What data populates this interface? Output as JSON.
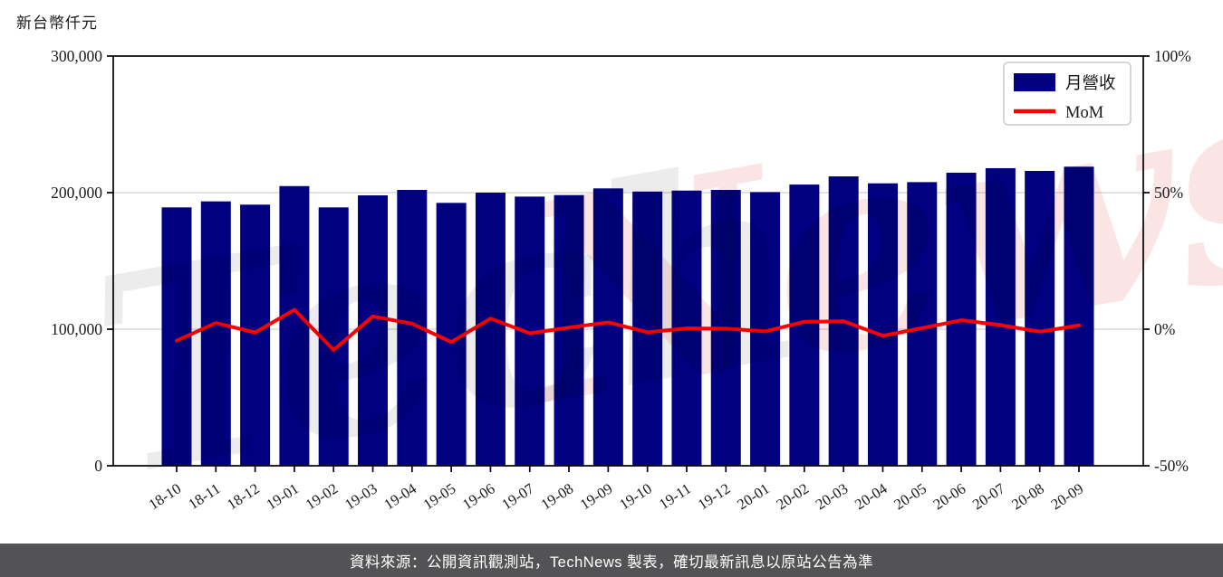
{
  "title": "新台幣仟元",
  "caption": "資料來源：公開資訊觀測站，TechNews 製表，確切最新訊息以原站公告為準",
  "watermark": {
    "gray_text": "Tech",
    "pink_text": "News",
    "gray_color": "#ececec",
    "pink_color": "#fbe4e4"
  },
  "legend": {
    "items": [
      {
        "label": "月營收",
        "type": "bar",
        "color": "#000080"
      },
      {
        "label": "MoM",
        "type": "line",
        "color": "#ff0000"
      }
    ]
  },
  "chart_data": {
    "type": "bar+line",
    "title": "新台幣仟元",
    "categories": [
      "18-10",
      "18-11",
      "18-12",
      "19-01",
      "19-02",
      "19-03",
      "19-04",
      "19-05",
      "19-06",
      "19-07",
      "19-08",
      "19-09",
      "19-10",
      "19-11",
      "19-12",
      "20-01",
      "20-02",
      "20-03",
      "20-04",
      "20-05",
      "20-06",
      "20-07",
      "20-08",
      "20-09"
    ],
    "series": [
      {
        "name": "月營收",
        "type": "bar",
        "axis": "left",
        "color": "#000080",
        "values": [
          189200,
          193600,
          191200,
          204800,
          189200,
          198000,
          202000,
          192500,
          200000,
          197100,
          198200,
          203100,
          200800,
          201500,
          202000,
          200400,
          205900,
          211900,
          206800,
          207700,
          214600,
          217900,
          215900,
          219000
        ]
      },
      {
        "name": "MoM",
        "type": "line",
        "axis": "right",
        "color": "#ff0000",
        "values": [
          -4.2,
          2.3,
          -1.2,
          7.1,
          -7.6,
          4.7,
          2.0,
          -4.7,
          3.9,
          -1.5,
          0.6,
          2.5,
          -1.1,
          0.3,
          0.2,
          -0.8,
          2.7,
          2.9,
          -2.4,
          0.4,
          3.3,
          1.5,
          -0.9,
          1.4
        ]
      }
    ],
    "left_axis": {
      "unit": "新台幣仟元",
      "tick_labels": [
        "300,000",
        "200,000",
        "100,000",
        "0"
      ],
      "tick_values": [
        300000,
        200000,
        100000,
        0
      ],
      "range": [
        0,
        300000
      ]
    },
    "right_axis": {
      "unit": "%",
      "tick_labels": [
        "100%",
        "50%",
        "0%",
        "-50%"
      ],
      "tick_values": [
        100,
        50,
        0,
        -50
      ],
      "range": [
        -50,
        100
      ]
    },
    "grid": {
      "horizontal_at_left_values": [
        200000,
        100000
      ],
      "color": "#d8d8d8"
    },
    "legend_position": "upper-right-inside",
    "xlabel_rotation_deg": -33
  }
}
